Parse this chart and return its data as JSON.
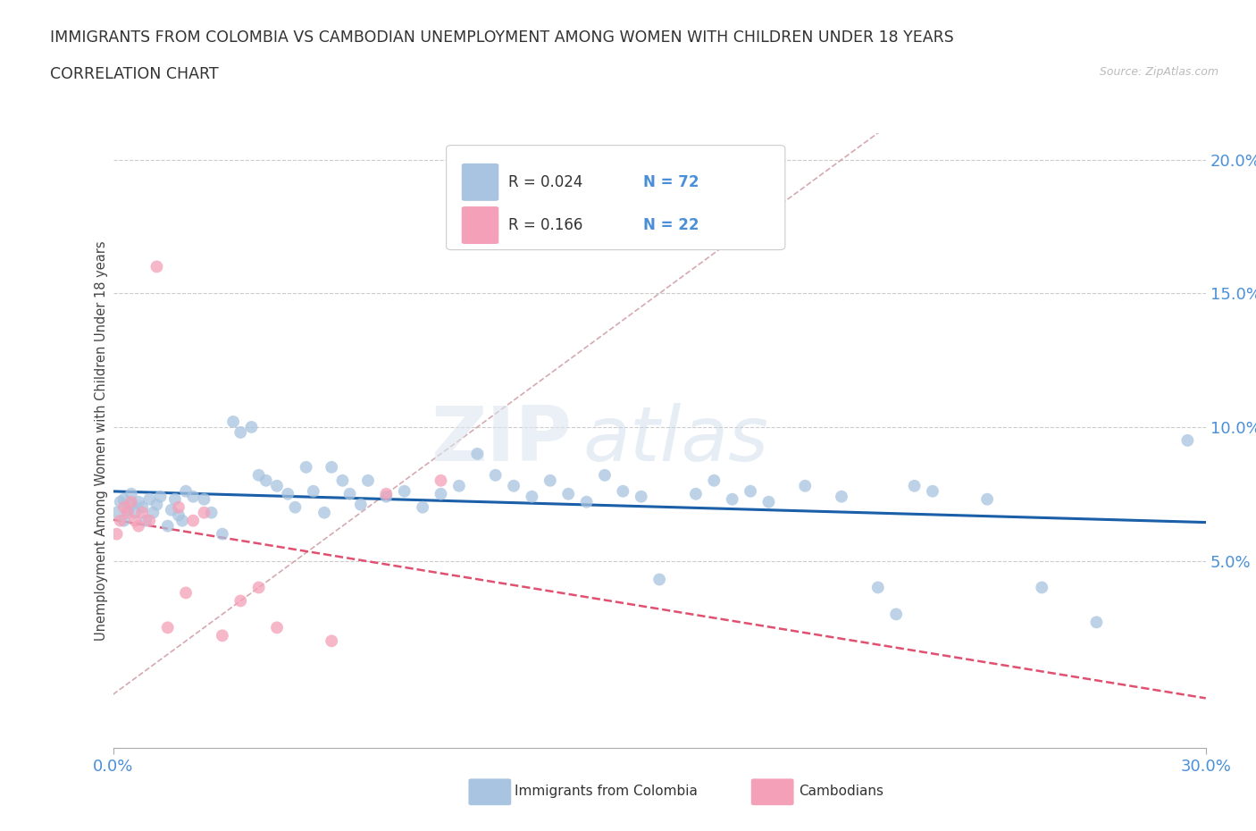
{
  "title_line1": "IMMIGRANTS FROM COLOMBIA VS CAMBODIAN UNEMPLOYMENT AMONG WOMEN WITH CHILDREN UNDER 18 YEARS",
  "title_line2": "CORRELATION CHART",
  "source": "Source: ZipAtlas.com",
  "ylabel": "Unemployment Among Women with Children Under 18 years",
  "x_min": 0.0,
  "x_max": 0.3,
  "y_min": -0.02,
  "y_max": 0.21,
  "yticks": [
    0.05,
    0.1,
    0.15,
    0.2
  ],
  "ytick_labels": [
    "5.0%",
    "10.0%",
    "15.0%",
    "20.0%"
  ],
  "xticks": [
    0.0,
    0.3
  ],
  "xtick_labels": [
    "0.0%",
    "30.0%"
  ],
  "legend_r1": "R = 0.024",
  "legend_n1": "N = 72",
  "legend_r2": "R = 0.166",
  "legend_n2": "N = 22",
  "color_colombia": "#a8c4e0",
  "color_cambodian": "#f4a0b8",
  "color_colombia_line": "#1a5fa8",
  "color_diagonal": "#d0a0a8",
  "watermark_zip": "ZIP",
  "watermark_atlas": "atlas",
  "background_color": "#ffffff",
  "colombia_x": [
    0.001,
    0.002,
    0.003,
    0.003,
    0.004,
    0.005,
    0.005,
    0.006,
    0.007,
    0.008,
    0.009,
    0.01,
    0.011,
    0.012,
    0.013,
    0.015,
    0.016,
    0.017,
    0.018,
    0.019,
    0.02,
    0.022,
    0.025,
    0.027,
    0.03,
    0.033,
    0.035,
    0.038,
    0.04,
    0.042,
    0.045,
    0.048,
    0.05,
    0.053,
    0.055,
    0.058,
    0.06,
    0.063,
    0.065,
    0.068,
    0.07,
    0.075,
    0.08,
    0.085,
    0.09,
    0.095,
    0.1,
    0.105,
    0.11,
    0.115,
    0.12,
    0.125,
    0.13,
    0.135,
    0.14,
    0.145,
    0.15,
    0.16,
    0.165,
    0.17,
    0.175,
    0.18,
    0.19,
    0.2,
    0.21,
    0.215,
    0.22,
    0.225,
    0.24,
    0.255,
    0.27,
    0.295
  ],
  "colombia_y": [
    0.068,
    0.072,
    0.065,
    0.073,
    0.069,
    0.071,
    0.075,
    0.068,
    0.072,
    0.07,
    0.065,
    0.073,
    0.068,
    0.071,
    0.074,
    0.063,
    0.069,
    0.073,
    0.067,
    0.065,
    0.076,
    0.074,
    0.073,
    0.068,
    0.06,
    0.102,
    0.098,
    0.1,
    0.082,
    0.08,
    0.078,
    0.075,
    0.07,
    0.085,
    0.076,
    0.068,
    0.085,
    0.08,
    0.075,
    0.071,
    0.08,
    0.074,
    0.076,
    0.07,
    0.075,
    0.078,
    0.09,
    0.082,
    0.078,
    0.074,
    0.08,
    0.075,
    0.072,
    0.082,
    0.076,
    0.074,
    0.043,
    0.075,
    0.08,
    0.073,
    0.076,
    0.072,
    0.078,
    0.074,
    0.04,
    0.03,
    0.078,
    0.076,
    0.073,
    0.04,
    0.027,
    0.095
  ],
  "cambodian_x": [
    0.001,
    0.002,
    0.003,
    0.004,
    0.005,
    0.006,
    0.007,
    0.008,
    0.01,
    0.012,
    0.015,
    0.018,
    0.02,
    0.022,
    0.025,
    0.03,
    0.035,
    0.04,
    0.045,
    0.06,
    0.075,
    0.09
  ],
  "cambodian_y": [
    0.06,
    0.065,
    0.07,
    0.068,
    0.072,
    0.065,
    0.063,
    0.068,
    0.065,
    0.16,
    0.025,
    0.07,
    0.038,
    0.065,
    0.068,
    0.022,
    0.035,
    0.04,
    0.025,
    0.02,
    0.075,
    0.08
  ]
}
